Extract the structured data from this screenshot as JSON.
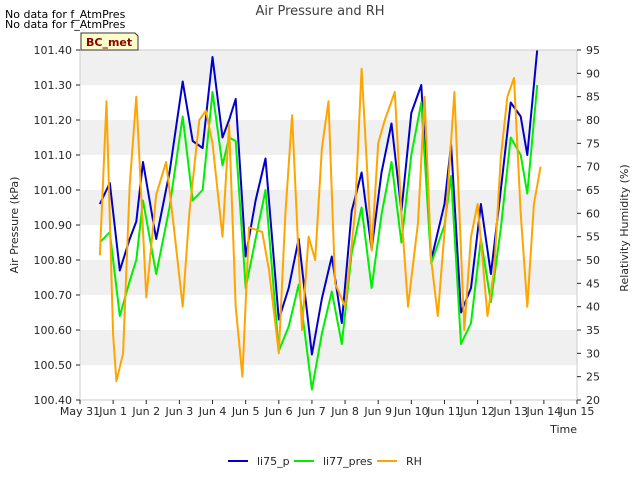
{
  "notices": [
    "No data for f_AtmPres",
    "No data for f_AtmPres"
  ],
  "badge": "BC_met",
  "chart_data": {
    "type": "line",
    "title": "Air Pressure and RH",
    "xlabel": "Time",
    "ylabel": "Air Pressure (kPa)",
    "y2label": "Relativity Humidity (%)",
    "xticks": [
      "May 31",
      "Jun 1",
      "Jun 2",
      "Jun 3",
      "Jun 4",
      "Jun 5",
      "Jun 6",
      "Jun 7",
      "Jun 8",
      "Jun 9",
      "Jun 10",
      "Jun 11",
      "Jun 12",
      "Jun 13",
      "Jun 14",
      "Jun 15"
    ],
    "xlim": [
      0,
      15
    ],
    "ylim": [
      100.4,
      101.4
    ],
    "y2lim": [
      20,
      95
    ],
    "yticks": [
      "100.40",
      "100.50",
      "100.60",
      "100.70",
      "100.80",
      "100.90",
      "101.00",
      "101.10",
      "101.20",
      "101.30",
      "101.40"
    ],
    "y2ticks": [
      "20",
      "25",
      "30",
      "35",
      "40",
      "45",
      "50",
      "55",
      "60",
      "65",
      "70",
      "75",
      "80",
      "85",
      "90",
      "95"
    ],
    "grid": "horizontal bands",
    "legend_position": "bottom",
    "series": [
      {
        "name": "li75_p",
        "axis": "left",
        "color": "#0000cc",
        "points": [
          [
            0.6,
            100.96
          ],
          [
            0.9,
            101.02
          ],
          [
            1.2,
            100.77
          ],
          [
            1.5,
            100.86
          ],
          [
            1.7,
            100.91
          ],
          [
            1.9,
            101.08
          ],
          [
            2.3,
            100.86
          ],
          [
            2.7,
            101.05
          ],
          [
            3.1,
            101.31
          ],
          [
            3.4,
            101.14
          ],
          [
            3.7,
            101.12
          ],
          [
            4.0,
            101.38
          ],
          [
            4.3,
            101.15
          ],
          [
            4.5,
            101.2
          ],
          [
            4.7,
            101.26
          ],
          [
            5.0,
            100.81
          ],
          [
            5.3,
            100.97
          ],
          [
            5.6,
            101.09
          ],
          [
            6.0,
            100.63
          ],
          [
            6.3,
            100.72
          ],
          [
            6.6,
            100.86
          ],
          [
            7.0,
            100.53
          ],
          [
            7.3,
            100.69
          ],
          [
            7.6,
            100.81
          ],
          [
            7.9,
            100.62
          ],
          [
            8.2,
            100.94
          ],
          [
            8.5,
            101.05
          ],
          [
            8.8,
            100.83
          ],
          [
            9.1,
            101.05
          ],
          [
            9.4,
            101.19
          ],
          [
            9.7,
            100.94
          ],
          [
            10.0,
            101.22
          ],
          [
            10.3,
            101.3
          ],
          [
            10.6,
            100.8
          ],
          [
            11.0,
            100.96
          ],
          [
            11.2,
            101.13
          ],
          [
            11.5,
            100.65
          ],
          [
            11.8,
            100.72
          ],
          [
            12.1,
            100.96
          ],
          [
            12.4,
            100.76
          ],
          [
            12.7,
            101.0
          ],
          [
            13.0,
            101.25
          ],
          [
            13.3,
            101.21
          ],
          [
            13.5,
            101.1
          ],
          [
            13.8,
            101.4
          ]
        ]
      },
      {
        "name": "li77_pres",
        "axis": "left",
        "color": "#00ee00",
        "points": [
          [
            0.6,
            100.85
          ],
          [
            0.9,
            100.88
          ],
          [
            1.2,
            100.64
          ],
          [
            1.5,
            100.74
          ],
          [
            1.7,
            100.8
          ],
          [
            1.9,
            100.97
          ],
          [
            2.3,
            100.76
          ],
          [
            2.7,
            100.95
          ],
          [
            3.1,
            101.21
          ],
          [
            3.4,
            100.97
          ],
          [
            3.7,
            101.0
          ],
          [
            4.0,
            101.28
          ],
          [
            4.3,
            101.07
          ],
          [
            4.5,
            101.15
          ],
          [
            4.7,
            101.14
          ],
          [
            5.0,
            100.72
          ],
          [
            5.3,
            100.86
          ],
          [
            5.6,
            101.0
          ],
          [
            6.0,
            100.54
          ],
          [
            6.3,
            100.61
          ],
          [
            6.6,
            100.73
          ],
          [
            7.0,
            100.43
          ],
          [
            7.3,
            100.59
          ],
          [
            7.6,
            100.71
          ],
          [
            7.9,
            100.56
          ],
          [
            8.2,
            100.82
          ],
          [
            8.5,
            100.95
          ],
          [
            8.8,
            100.72
          ],
          [
            9.1,
            100.93
          ],
          [
            9.4,
            101.08
          ],
          [
            9.7,
            100.85
          ],
          [
            10.0,
            101.1
          ],
          [
            10.3,
            101.25
          ],
          [
            10.6,
            100.79
          ],
          [
            11.0,
            100.9
          ],
          [
            11.2,
            101.04
          ],
          [
            11.5,
            100.56
          ],
          [
            11.8,
            100.62
          ],
          [
            12.1,
            100.86
          ],
          [
            12.4,
            100.68
          ],
          [
            12.7,
            100.89
          ],
          [
            13.0,
            101.15
          ],
          [
            13.3,
            101.1
          ],
          [
            13.5,
            100.99
          ],
          [
            13.8,
            101.3
          ]
        ]
      },
      {
        "name": "RH",
        "axis": "right",
        "color": "#ffa500",
        "points": [
          [
            0.6,
            51
          ],
          [
            0.8,
            84
          ],
          [
            1.0,
            34
          ],
          [
            1.1,
            24
          ],
          [
            1.3,
            30
          ],
          [
            1.5,
            66
          ],
          [
            1.7,
            85
          ],
          [
            2.0,
            42
          ],
          [
            2.3,
            64
          ],
          [
            2.6,
            71
          ],
          [
            2.8,
            59
          ],
          [
            3.1,
            40
          ],
          [
            3.3,
            60
          ],
          [
            3.6,
            80
          ],
          [
            3.8,
            82
          ],
          [
            4.0,
            75
          ],
          [
            4.3,
            55
          ],
          [
            4.5,
            79
          ],
          [
            4.7,
            40
          ],
          [
            4.9,
            25
          ],
          [
            5.1,
            57
          ],
          [
            5.5,
            56
          ],
          [
            5.7,
            48
          ],
          [
            6.0,
            30
          ],
          [
            6.2,
            60
          ],
          [
            6.4,
            81
          ],
          [
            6.7,
            35
          ],
          [
            6.9,
            55
          ],
          [
            7.1,
            50
          ],
          [
            7.3,
            74
          ],
          [
            7.5,
            84
          ],
          [
            7.7,
            45
          ],
          [
            8.0,
            40
          ],
          [
            8.3,
            60
          ],
          [
            8.5,
            91
          ],
          [
            8.8,
            52
          ],
          [
            9.0,
            75
          ],
          [
            9.2,
            80
          ],
          [
            9.5,
            86
          ],
          [
            9.7,
            60
          ],
          [
            9.9,
            40
          ],
          [
            10.2,
            58
          ],
          [
            10.4,
            85
          ],
          [
            10.6,
            50
          ],
          [
            10.8,
            38
          ],
          [
            11.1,
            65
          ],
          [
            11.3,
            86
          ],
          [
            11.6,
            35
          ],
          [
            11.8,
            55
          ],
          [
            12.0,
            62
          ],
          [
            12.3,
            38
          ],
          [
            12.5,
            48
          ],
          [
            12.7,
            72
          ],
          [
            12.9,
            85
          ],
          [
            13.1,
            89
          ],
          [
            13.3,
            60
          ],
          [
            13.5,
            40
          ],
          [
            13.7,
            62
          ],
          [
            13.9,
            70
          ]
        ]
      }
    ]
  }
}
